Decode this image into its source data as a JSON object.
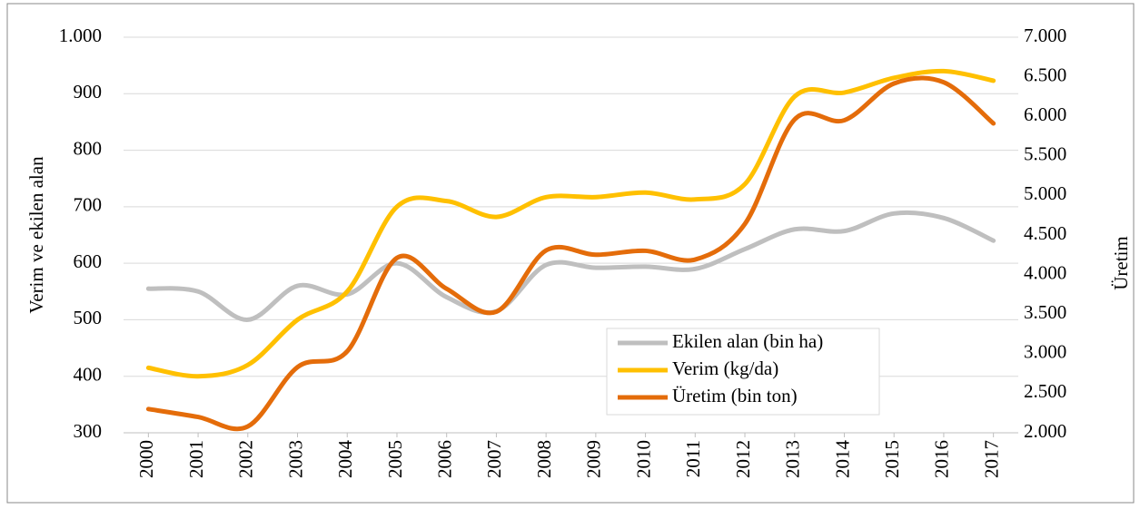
{
  "chart_data": {
    "type": "line",
    "categories": [
      "2000",
      "2001",
      "2002",
      "2003",
      "2004",
      "2005",
      "2006",
      "2007",
      "2008",
      "2009",
      "2010",
      "2011",
      "2012",
      "2013",
      "2014",
      "2015",
      "2016",
      "2017"
    ],
    "series": [
      {
        "name": "Ekilen alan  (bin ha)",
        "color": "#bfbfbf",
        "values": [
          555,
          550,
          500,
          560,
          545,
          600,
          540,
          515,
          597,
          592,
          594,
          590,
          625,
          660,
          657,
          688,
          680,
          640
        ]
      },
      {
        "name": "Verim (kg/da)",
        "color": "#ffc000",
        "values": [
          415,
          400,
          420,
          500,
          550,
          700,
          710,
          682,
          717,
          717,
          725,
          713,
          740,
          895,
          902,
          928,
          940,
          923
        ]
      },
      {
        "name": "Üretim (bin ton)",
        "color": "#e46c0a",
        "axis": "y2",
        "values": [
          2300,
          2200,
          2080,
          2830,
          3030,
          4210,
          3820,
          3530,
          4305,
          4250,
          4300,
          4190,
          4640,
          5960,
          5950,
          6415,
          6430,
          5910
        ]
      }
    ],
    "ylabel": "Verim ve ekilen alan",
    "y2label": "Üretim",
    "ylim": [
      300,
      1000
    ],
    "yticks": [
      300,
      400,
      500,
      600,
      700,
      800,
      900,
      {
        "value": 1000,
        "label": "1.000"
      }
    ],
    "y2lim": [
      2000,
      7000
    ],
    "y2ticks": [
      {
        "value": 2000,
        "label": "2.000"
      },
      {
        "value": 2500,
        "label": "2.500"
      },
      {
        "value": 3000,
        "label": "3.000"
      },
      {
        "value": 3500,
        "label": "3.500"
      },
      {
        "value": 4000,
        "label": "4.000"
      },
      {
        "value": 4500,
        "label": "4.500"
      },
      {
        "value": 5000,
        "label": "5.000"
      },
      {
        "value": 5500,
        "label": "5.500"
      },
      {
        "value": 6000,
        "label": "6.000"
      },
      {
        "value": 6500,
        "label": "6.500"
      },
      {
        "value": 7000,
        "label": "7.000"
      }
    ],
    "grid": true
  }
}
